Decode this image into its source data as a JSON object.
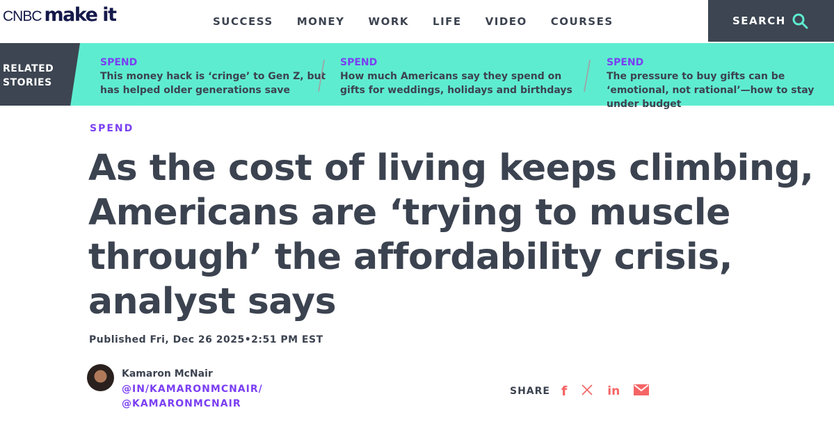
{
  "header": {
    "logo_cnbc": "CNBC",
    "logo_makeit": "make it",
    "nav": [
      "SUCCESS",
      "MONEY",
      "WORK",
      "LIFE",
      "VIDEO",
      "COURSES"
    ],
    "search_label": "SEARCH"
  },
  "related": {
    "label_line1": "RELATED",
    "label_line2": "STORIES",
    "stories": [
      {
        "category": "SPEND",
        "headline": "This money hack is ‘cringe’ to Gen Z, but has helped older generations save"
      },
      {
        "category": "SPEND",
        "headline": "How much Americans say they spend on gifts for weddings, holidays and birthdays"
      },
      {
        "category": "SPEND",
        "headline": "The pressure to buy gifts can be ‘emotional, not rational’—how to stay under budget"
      }
    ]
  },
  "article": {
    "kicker": "SPEND",
    "title": "As the cost of living keeps climbing, Americans are ‘trying to muscle through’ the affordability crisis, analyst says",
    "published": "Published Fri, Dec 26 2025•2:51 PM EST",
    "author": {
      "name": "Kamaron McNair",
      "linkedin": "@IN/KAMARONMCNAIR/",
      "twitter": "@KAMARONMCNAIR"
    },
    "share": {
      "label": "SHARE",
      "icons": [
        "facebook-icon",
        "x-icon",
        "linkedin-icon",
        "email-icon"
      ]
    }
  },
  "colors": {
    "accent_purple": "#7b3ff2",
    "teal": "#5eecd0",
    "dark": "#3c4551",
    "share_red": "#f56565"
  }
}
